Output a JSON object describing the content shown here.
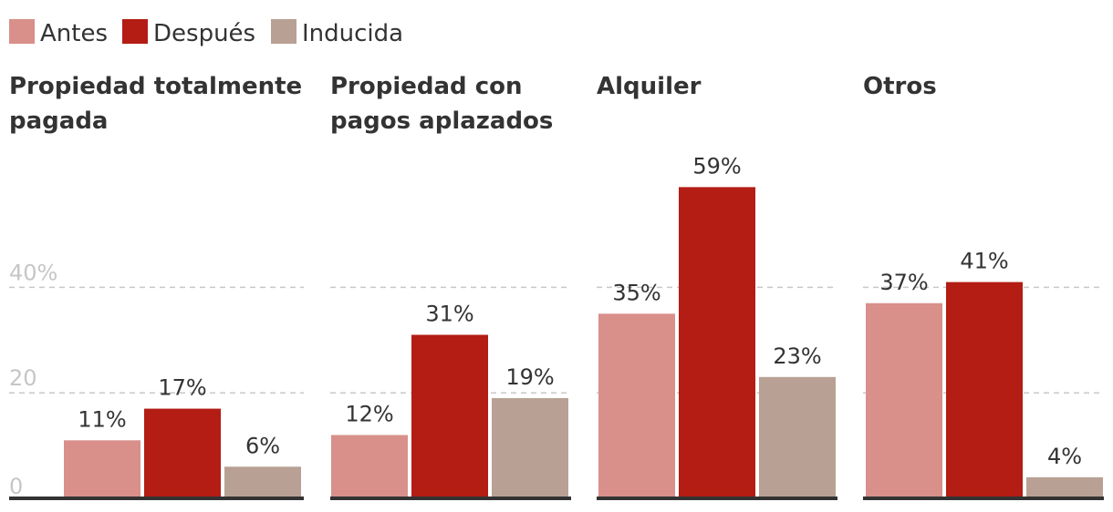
{
  "chart_data": {
    "type": "bar",
    "series": [
      {
        "name": "Antes",
        "color": "#d98f8a"
      },
      {
        "name": "Después",
        "color": "#b31d14"
      },
      {
        "name": "Inducida",
        "color": "#b8a194"
      }
    ],
    "panels": [
      {
        "title": [
          "Propiedad totalmente",
          "pagada"
        ],
        "values": [
          11,
          17,
          6
        ],
        "labels": [
          "11%",
          "17%",
          "6%"
        ]
      },
      {
        "title": [
          "Propiedad con",
          "pagos aplazados"
        ],
        "values": [
          12,
          31,
          19
        ],
        "labels": [
          "12%",
          "31%",
          "19%"
        ]
      },
      {
        "title": [
          "Alquiler"
        ],
        "values": [
          35,
          59,
          23
        ],
        "labels": [
          "35%",
          "59%",
          "23%"
        ]
      },
      {
        "title": [
          "Otros"
        ],
        "values": [
          37,
          41,
          4
        ],
        "labels": [
          "37%",
          "41%",
          "4%"
        ]
      }
    ],
    "yticks": [
      0,
      20,
      40
    ],
    "ytick_labels": [
      "0",
      "20",
      "40%"
    ],
    "ylim": [
      0,
      59
    ],
    "legend_position": "top-left",
    "grid": true
  }
}
